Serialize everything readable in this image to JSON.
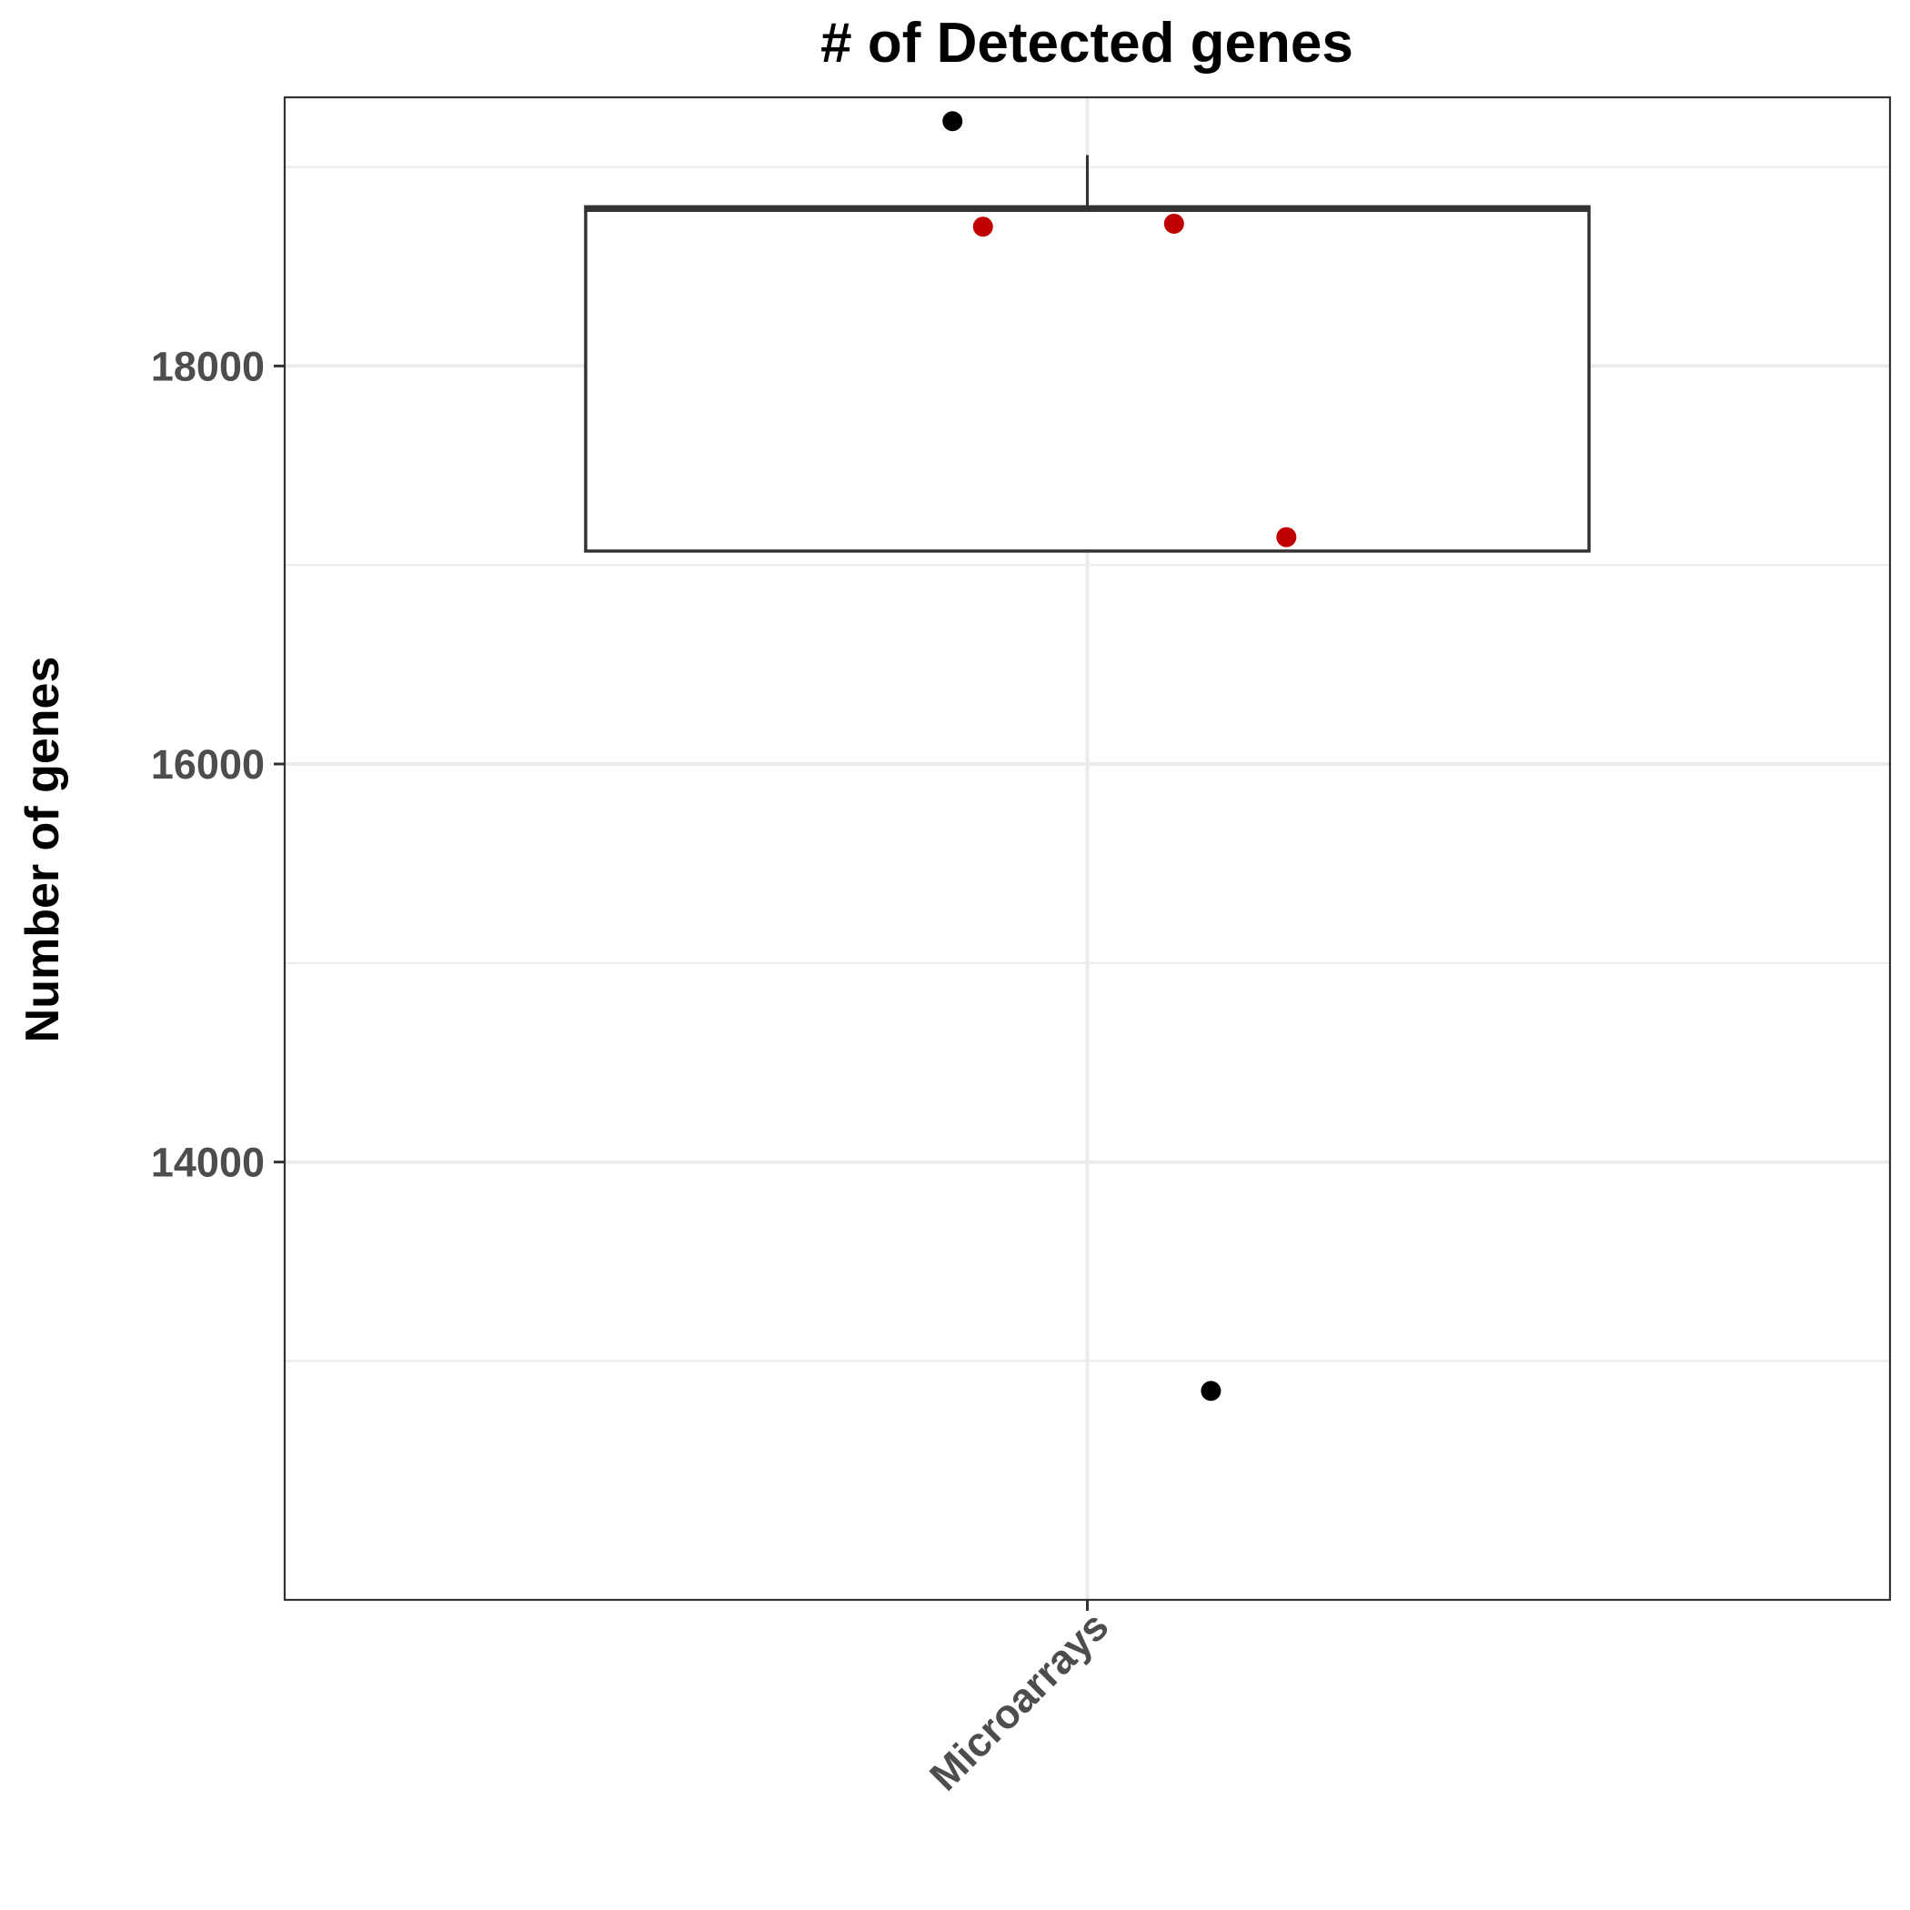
{
  "chart_data": {
    "type": "box",
    "title": "# of Detected genes",
    "xlabel": "",
    "ylabel": "Number of genes",
    "categories": [
      "Microarrays"
    ],
    "ylim": [
      11800,
      19350
    ],
    "yticks": [
      14000,
      16000,
      18000
    ],
    "grid": true,
    "box": {
      "category": "Microarrays",
      "q1": 17070,
      "median": 18790,
      "q3": 18800,
      "whisker_low": 17070,
      "whisker_high": 19060
    },
    "points": [
      {
        "x": "Microarrays",
        "y": 19230,
        "color": "#000000",
        "kind": "outlier"
      },
      {
        "x": "Microarrays",
        "y": 18700,
        "color": "#c00000",
        "kind": "jitter"
      },
      {
        "x": "Microarrays",
        "y": 18715,
        "color": "#c00000",
        "kind": "jitter"
      },
      {
        "x": "Microarrays",
        "y": 17140,
        "color": "#c00000",
        "kind": "jitter"
      },
      {
        "x": "Microarrays",
        "y": 12850,
        "color": "#000000",
        "kind": "outlier"
      }
    ]
  },
  "colors": {
    "outlier": "#000000",
    "jitter": "#c00000",
    "grid": "#ebebeb",
    "box_stroke": "#333333"
  }
}
